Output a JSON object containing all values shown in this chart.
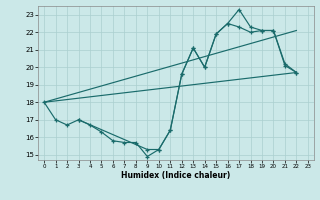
{
  "title": "",
  "xlabel": "Humidex (Indice chaleur)",
  "bg_color": "#cbe8e8",
  "grid_color": "#aacfcf",
  "line_color": "#1a6b6b",
  "xmin": -0.5,
  "xmax": 23.5,
  "ymin": 14.7,
  "ymax": 23.5,
  "xticks": [
    0,
    1,
    2,
    3,
    4,
    5,
    6,
    7,
    8,
    9,
    10,
    11,
    12,
    13,
    14,
    15,
    16,
    17,
    18,
    19,
    20,
    21,
    22,
    23
  ],
  "yticks": [
    15,
    16,
    17,
    18,
    19,
    20,
    21,
    22,
    23
  ],
  "line1_x": [
    0,
    1,
    2,
    3,
    4,
    5,
    6,
    7,
    8,
    9,
    10,
    11,
    12,
    13,
    14,
    15,
    16,
    17,
    18,
    19,
    20,
    21,
    22
  ],
  "line1_y": [
    18.0,
    17.0,
    16.7,
    17.0,
    16.7,
    16.3,
    15.8,
    15.7,
    15.7,
    14.9,
    15.3,
    16.4,
    19.6,
    21.1,
    20.0,
    21.9,
    22.5,
    23.3,
    22.3,
    22.1,
    22.1,
    20.1,
    19.7
  ],
  "line2_x": [
    0,
    22
  ],
  "line2_y": [
    18.0,
    19.7
  ],
  "line3_x": [
    0,
    22
  ],
  "line3_y": [
    18.0,
    22.1
  ],
  "line4_x": [
    3,
    9,
    10,
    11,
    12,
    13,
    14,
    15,
    16,
    17,
    18,
    19,
    20,
    21,
    22
  ],
  "line4_y": [
    17.0,
    15.3,
    15.3,
    16.4,
    19.6,
    21.1,
    20.0,
    21.9,
    22.5,
    22.3,
    22.0,
    22.1,
    22.1,
    20.2,
    19.7
  ]
}
